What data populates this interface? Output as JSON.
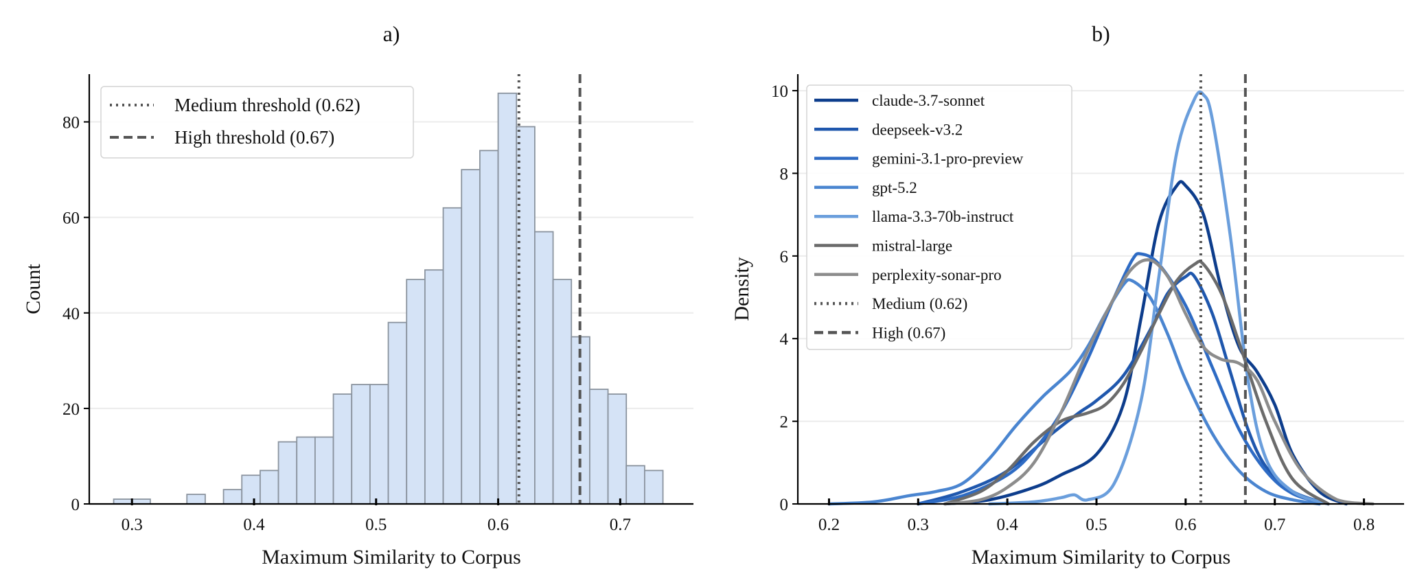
{
  "chart_data": [
    {
      "type": "bar",
      "panel_label": "a)",
      "xlabel": "Maximum Similarity to Corpus",
      "ylabel": "Count",
      "xlim": [
        0.265,
        0.76
      ],
      "ylim": [
        0,
        90
      ],
      "xticks": [
        "0.3",
        "0.4",
        "0.5",
        "0.6",
        "0.7"
      ],
      "yticks": [
        "0",
        "20",
        "40",
        "60",
        "80"
      ],
      "grid": "horizontal",
      "legend_position": "top-left",
      "bar_color": "#d5e3f6",
      "bin_edges": [
        0.285,
        0.3,
        0.315,
        0.33,
        0.345,
        0.36,
        0.375,
        0.39,
        0.405,
        0.42,
        0.435,
        0.45,
        0.465,
        0.48,
        0.495,
        0.51,
        0.525,
        0.54,
        0.555,
        0.57,
        0.585,
        0.6,
        0.615,
        0.63,
        0.645,
        0.66,
        0.675,
        0.69,
        0.705,
        0.72,
        0.735
      ],
      "counts": [
        1,
        1,
        0,
        0,
        2,
        0,
        3,
        6,
        7,
        13,
        14,
        14,
        23,
        25,
        25,
        38,
        47,
        49,
        62,
        70,
        74,
        86,
        79,
        57,
        47,
        35,
        24,
        23,
        8,
        7
      ],
      "thresholds": [
        {
          "label": "Medium threshold (0.62)",
          "value": 0.617,
          "style": "dotted",
          "color": "#555555"
        },
        {
          "label": "High threshold (0.67)",
          "value": 0.667,
          "style": "dashed",
          "color": "#555555"
        }
      ]
    },
    {
      "type": "line",
      "panel_label": "b)",
      "xlabel": "Maximum Similarity to Corpus",
      "ylabel": "Density",
      "xlim": [
        0.165,
        0.845
      ],
      "ylim": [
        0,
        10.4
      ],
      "xticks": [
        "0.2",
        "0.3",
        "0.4",
        "0.5",
        "0.6",
        "0.7",
        "0.8"
      ],
      "yticks": [
        "0",
        "2",
        "4",
        "6",
        "8",
        "10"
      ],
      "grid": "horizontal",
      "legend_position": "top-left",
      "series": [
        {
          "name": "claude-3.7-sonnet",
          "color": "#0d3d8c",
          "x": [
            0.33,
            0.38,
            0.43,
            0.46,
            0.5,
            0.53,
            0.55,
            0.57,
            0.59,
            0.6,
            0.62,
            0.64,
            0.66,
            0.68,
            0.7,
            0.72,
            0.75,
            0.78
          ],
          "y": [
            0,
            0.1,
            0.4,
            0.7,
            1.2,
            2.4,
            4.5,
            6.8,
            7.7,
            7.7,
            7.0,
            5.2,
            3.8,
            3.2,
            2.4,
            1.2,
            0.3,
            0
          ]
        },
        {
          "name": "deepseek-v3.2",
          "color": "#1f57ad",
          "x": [
            0.3,
            0.35,
            0.4,
            0.45,
            0.48,
            0.5,
            0.53,
            0.56,
            0.58,
            0.6,
            0.61,
            0.63,
            0.65,
            0.67,
            0.69,
            0.72,
            0.76
          ],
          "y": [
            0,
            0.3,
            0.8,
            1.7,
            2.2,
            2.5,
            3.1,
            4.2,
            5.1,
            5.5,
            5.5,
            4.6,
            3.2,
            1.8,
            0.9,
            0.3,
            0
          ]
        },
        {
          "name": "gemini-3.1-pro-preview",
          "color": "#2e6bc4",
          "x": [
            0.3,
            0.35,
            0.4,
            0.43,
            0.46,
            0.49,
            0.52,
            0.54,
            0.55,
            0.57,
            0.6,
            0.63,
            0.66,
            0.69,
            0.72,
            0.76
          ],
          "y": [
            0,
            0.2,
            0.7,
            1.3,
            2.2,
            3.5,
            5.0,
            5.9,
            6.05,
            5.8,
            4.8,
            3.3,
            1.8,
            0.8,
            0.25,
            0
          ]
        },
        {
          "name": "gpt-5.2",
          "color": "#4a85d0",
          "x": [
            0.2,
            0.25,
            0.29,
            0.32,
            0.35,
            0.38,
            0.41,
            0.44,
            0.47,
            0.49,
            0.51,
            0.53,
            0.54,
            0.56,
            0.58,
            0.6,
            0.63,
            0.66,
            0.69,
            0.72,
            0.75
          ],
          "y": [
            0,
            0.05,
            0.2,
            0.3,
            0.5,
            1.1,
            1.9,
            2.6,
            3.2,
            3.8,
            4.6,
            5.3,
            5.4,
            5.0,
            4.1,
            3.0,
            1.7,
            0.8,
            0.3,
            0.1,
            0
          ]
        },
        {
          "name": "llama-3.3-70b-instruct",
          "color": "#6a9edc",
          "x": [
            0.38,
            0.43,
            0.46,
            0.475,
            0.49,
            0.52,
            0.55,
            0.57,
            0.59,
            0.61,
            0.62,
            0.63,
            0.65,
            0.67,
            0.69,
            0.72,
            0.76
          ],
          "y": [
            0,
            0.05,
            0.15,
            0.22,
            0.1,
            0.5,
            2.5,
            5.5,
            8.5,
            9.8,
            9.9,
            9.3,
            6.5,
            3.0,
            1.1,
            0.3,
            0
          ]
        },
        {
          "name": "mistral-large",
          "color": "#6b6b6b",
          "x": [
            0.33,
            0.37,
            0.4,
            0.43,
            0.46,
            0.49,
            0.51,
            0.53,
            0.55,
            0.57,
            0.59,
            0.61,
            0.62,
            0.64,
            0.66,
            0.69,
            0.72,
            0.76
          ],
          "y": [
            0,
            0.3,
            0.8,
            1.5,
            2.0,
            2.2,
            2.4,
            2.9,
            3.7,
            4.6,
            5.4,
            5.8,
            5.8,
            5.1,
            3.9,
            2.0,
            0.6,
            0
          ]
        },
        {
          "name": "perplexity-sonar-pro",
          "color": "#8c8c8c",
          "x": [
            0.33,
            0.37,
            0.4,
            0.43,
            0.46,
            0.49,
            0.52,
            0.54,
            0.56,
            0.58,
            0.6,
            0.62,
            0.64,
            0.66,
            0.68,
            0.7,
            0.73,
            0.77,
            0.81
          ],
          "y": [
            0,
            0.1,
            0.4,
            1.0,
            2.2,
            3.7,
            5.0,
            5.7,
            5.9,
            5.5,
            4.6,
            3.8,
            3.5,
            3.4,
            3.0,
            2.0,
            0.8,
            0.1,
            0
          ]
        }
      ],
      "thresholds": [
        {
          "label": "Medium (0.62)",
          "value": 0.617,
          "style": "dotted",
          "color": "#555555"
        },
        {
          "label": "High (0.67)",
          "value": 0.667,
          "style": "dashed",
          "color": "#555555"
        }
      ]
    }
  ]
}
